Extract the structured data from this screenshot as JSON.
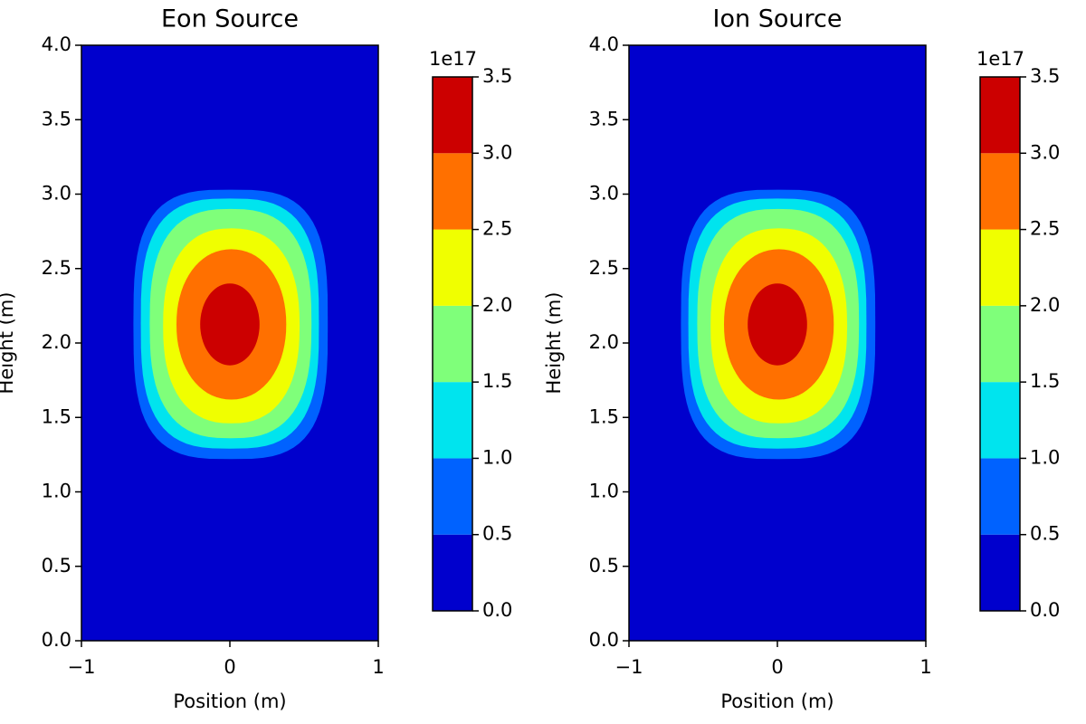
{
  "chart_data": [
    {
      "type": "contour",
      "title": "Eon Source",
      "xlabel": "Position (m)",
      "ylabel": "Height (m)",
      "xlim": [
        -1,
        1
      ],
      "xticks": [
        {
          "value": -1,
          "label": "−1"
        },
        0,
        1
      ],
      "ylim": [
        0,
        4
      ],
      "yticks": [
        {
          "value": 0,
          "label": "0.0"
        },
        0.5,
        {
          "value": 1,
          "label": "1.0"
        },
        1.5,
        {
          "value": 2,
          "label": "2.0"
        },
        2.5,
        {
          "value": 3,
          "label": "3.0"
        },
        3.5,
        {
          "value": 4,
          "label": "4.0"
        }
      ],
      "levels": [
        {
          "value": 0,
          "label": "0.0"
        },
        0.5,
        {
          "value": 1,
          "label": "1.0"
        },
        1.5,
        {
          "value": 2,
          "label": "2.0"
        },
        2.5,
        {
          "value": 3,
          "label": "3.0"
        },
        3.5
      ],
      "colorbar_offset": "1e17",
      "colors": [
        "#0000cd",
        "#0062ff",
        "#00e4ee",
        "#7fff7a",
        "#f0ff00",
        "#ff7000",
        "#cc0000"
      ]
    },
    {
      "type": "contour",
      "title": "Ion Source",
      "xlabel": "Position (m)",
      "ylabel": "Height (m)",
      "xlim": [
        -1,
        1
      ],
      "xticks": [
        {
          "value": -1,
          "label": "−1"
        },
        0,
        1
      ],
      "ylim": [
        0,
        4
      ],
      "yticks": [
        {
          "value": 0,
          "label": "0.0"
        },
        0.5,
        {
          "value": 1,
          "label": "1.0"
        },
        1.5,
        {
          "value": 2,
          "label": "2.0"
        },
        2.5,
        {
          "value": 3,
          "label": "3.0"
        },
        3.5,
        {
          "value": 4,
          "label": "4.0"
        }
      ],
      "levels": [
        {
          "value": 0,
          "label": "0.0"
        },
        0.5,
        {
          "value": 1,
          "label": "1.0"
        },
        1.5,
        {
          "value": 2,
          "label": "2.0"
        },
        2.5,
        {
          "value": 3,
          "label": "3.0"
        },
        3.5
      ],
      "colorbar_offset": "1e17",
      "colors": [
        "#0000cd",
        "#0062ff",
        "#00e4ee",
        "#7fff7a",
        "#f0ff00",
        "#ff7000",
        "#cc0000"
      ]
    }
  ]
}
